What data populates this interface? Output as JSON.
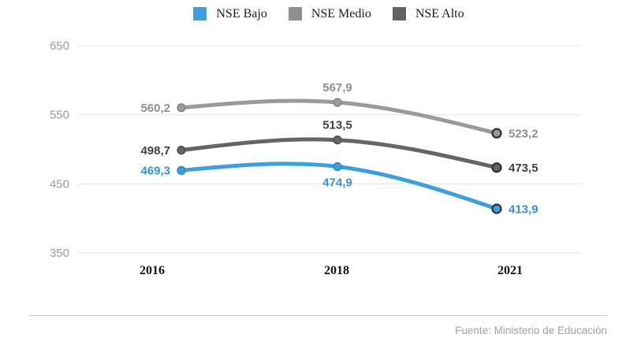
{
  "chart_data": {
    "type": "line",
    "categories": [
      "2016",
      "2018",
      "2021"
    ],
    "series": [
      {
        "name": "NSE Medio",
        "values": [
          560.2,
          567.9,
          523.2
        ],
        "color": "#9a9a9a",
        "label_color": "#8f8f8f",
        "marker_stroke": "#7f7f7f"
      },
      {
        "name": "NSE Alto",
        "values": [
          498.7,
          513.5,
          473.5
        ],
        "color": "#656565",
        "label_color": "#424242",
        "marker_stroke": "#4d4d4d"
      },
      {
        "name": "NSE Bajo",
        "values": [
          469.3,
          474.9,
          413.9
        ],
        "color": "#3ba0dd",
        "label_color": "#3095d0",
        "marker_stroke": "#2b84bd"
      }
    ],
    "legend": [
      {
        "label": "NSE Bajo",
        "color": "#3ba0dd"
      },
      {
        "label": "NSE Medio",
        "color": "#8f8f8f"
      },
      {
        "label": "NSE Alto",
        "color": "#646464"
      }
    ],
    "yticks": [
      650,
      550,
      450,
      350
    ],
    "ylim": [
      350,
      650
    ],
    "grid": "horizontal",
    "legend_position": "top",
    "curve": "natural-spline",
    "decimal_separator": ",",
    "final_marker_stroke": "#2f2f2f"
  },
  "footer": {
    "source": "Fuente: Ministerio de Educación"
  }
}
